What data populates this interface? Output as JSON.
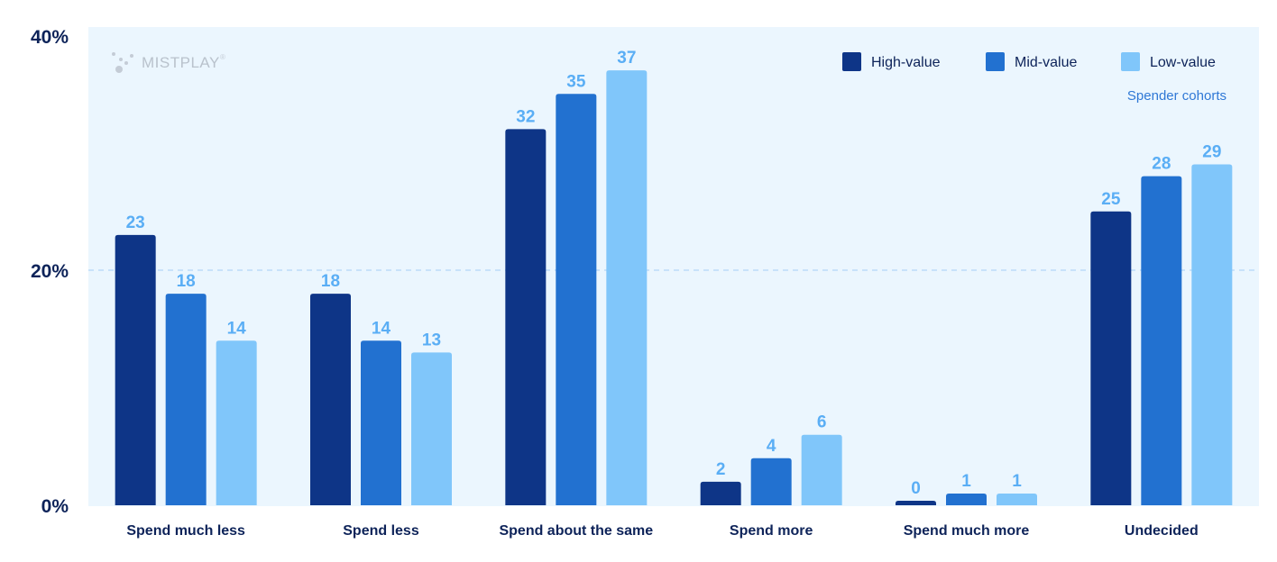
{
  "brand": {
    "name": "MISTPLAY",
    "mark": "®"
  },
  "chart_data": {
    "type": "bar",
    "title": "",
    "xlabel": "",
    "ylabel": "",
    "ylim": [
      0,
      40
    ],
    "yticks": [
      0,
      20,
      40
    ],
    "ytick_labels": [
      "0%",
      "20%",
      "40%"
    ],
    "grid": "dashed line at 20%",
    "legend_title": "Spender cohorts",
    "legend_position": "top-right",
    "categories": [
      "Spend much less",
      "Spend less",
      "Spend about the same",
      "Spend more",
      "Spend much more",
      "Undecided"
    ],
    "series": [
      {
        "name": "High-value",
        "color": "#0e3587",
        "values": [
          23,
          18,
          32,
          2,
          0,
          25
        ],
        "value_labels": [
          "23",
          "18",
          "32",
          "2",
          "0",
          "25"
        ]
      },
      {
        "name": "Mid-value",
        "color": "#2271d0",
        "values": [
          18,
          14,
          35,
          4,
          1,
          28
        ],
        "value_labels": [
          "18",
          "14",
          "35",
          "4",
          "1",
          "28"
        ]
      },
      {
        "name": "Low-value",
        "color": "#80c6fa",
        "values": [
          14,
          13,
          37,
          6,
          1,
          29
        ],
        "value_labels": [
          "14",
          "13",
          "37",
          "6",
          "1",
          "29"
        ]
      }
    ]
  }
}
